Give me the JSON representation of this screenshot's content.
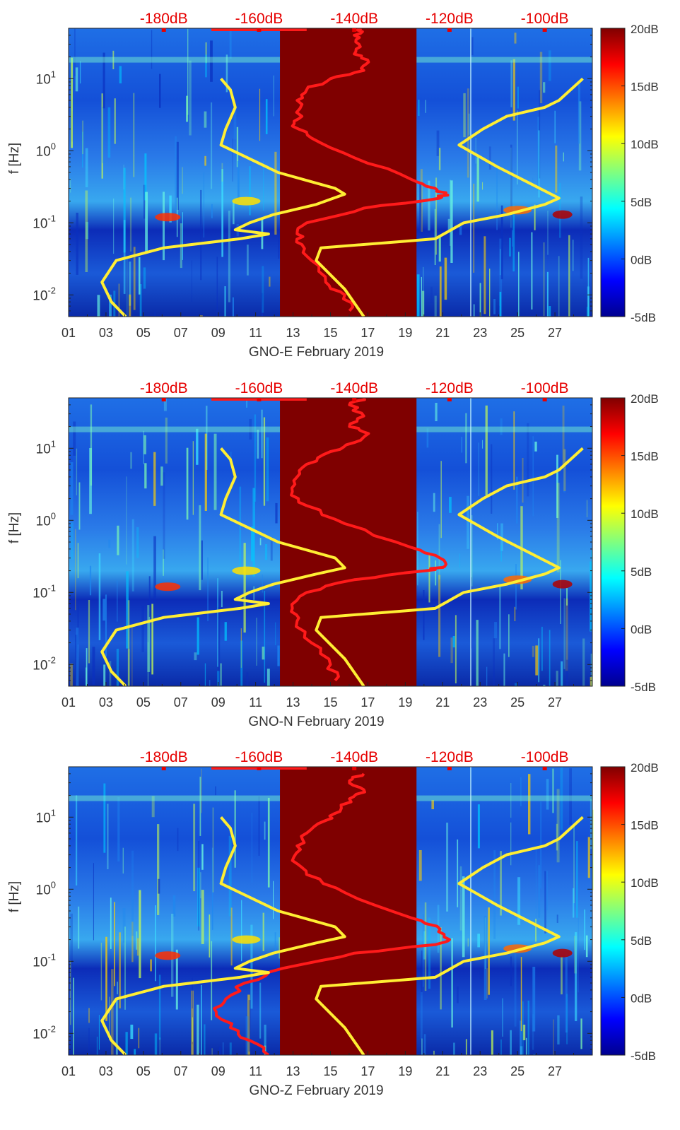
{
  "chart_data": [
    {
      "type": "heatmap",
      "station": "GNO-E",
      "xlabel": "GNO-E February 2019",
      "ylabel": "f [Hz]",
      "x_ticks": [
        "01",
        "03",
        "05",
        "07",
        "09",
        "11",
        "13",
        "15",
        "17",
        "19",
        "21",
        "23",
        "25",
        "27"
      ],
      "y_ticks": [
        "10^-2",
        "10^-1",
        "10^0",
        "10^1"
      ],
      "top_ticks": [
        "-180dB",
        "-160dB",
        "-140dB",
        "-120dB",
        "-100dB"
      ],
      "colorbar": {
        "ticks": [
          "-5dB",
          "0dB",
          "5dB",
          "10dB",
          "15dB",
          "20dB"
        ],
        "range_db": [
          -5,
          20
        ]
      },
      "x_range_day": [
        1,
        29
      ],
      "y_range_hz": [
        0.005,
        50
      ],
      "data_gap_days": [
        12.3,
        19.6
      ],
      "red_curve": {
        "name": "PSD (top axis, dB)",
        "points": [
          [
            -138.5,
            50
          ],
          [
            -140,
            40
          ],
          [
            -139,
            30
          ],
          [
            -140,
            22
          ],
          [
            -137,
            17
          ],
          [
            -138,
            13
          ],
          [
            -145,
            10
          ],
          [
            -150,
            7
          ],
          [
            -152,
            5
          ],
          [
            -151,
            3
          ],
          [
            -153,
            2.2
          ],
          [
            -149,
            1.5
          ],
          [
            -140,
            0.8
          ],
          [
            -128,
            0.4
          ],
          [
            -123,
            0.3
          ],
          [
            -121,
            0.25
          ],
          [
            -122,
            0.22
          ],
          [
            -138,
            0.16
          ],
          [
            -150,
            0.1
          ],
          [
            -152,
            0.07
          ],
          [
            -151,
            0.05
          ],
          [
            -149,
            0.03
          ],
          [
            -146,
            0.015
          ],
          [
            -142,
            0.01
          ],
          [
            -141,
            0.006
          ]
        ]
      },
      "yellow_curve": {
        "name": "Reference model (top axis, dB)",
        "points": [
          [
            -168,
            10
          ],
          [
            -166,
            7
          ],
          [
            -165,
            4
          ],
          [
            -167,
            2
          ],
          [
            -168,
            1.2
          ],
          [
            -156,
            0.5
          ],
          [
            -144,
            0.3
          ],
          [
            -142,
            0.25
          ],
          [
            -148,
            0.18
          ],
          [
            -157,
            0.13
          ],
          [
            -162,
            0.1
          ],
          [
            -165,
            0.08
          ],
          [
            -158,
            0.07
          ],
          [
            -164,
            0.06
          ],
          [
            -180,
            0.045
          ],
          [
            -190,
            0.03
          ],
          [
            -193,
            0.015
          ],
          [
            -191,
            0.008
          ],
          [
            -188,
            0.005
          ]
        ]
      },
      "yellow_curve_right": {
        "points": [
          [
            -138,
            0.005
          ],
          [
            -142,
            0.012
          ],
          [
            -148,
            0.03
          ],
          [
            -147,
            0.045
          ],
          [
            -130,
            0.055
          ],
          [
            -123,
            0.06
          ],
          [
            -117,
            0.1
          ],
          [
            -108,
            0.13
          ],
          [
            -100,
            0.18
          ],
          [
            -97,
            0.22
          ],
          [
            -103,
            0.35
          ],
          [
            -110,
            0.6
          ],
          [
            -118,
            1.2
          ],
          [
            -113,
            2
          ],
          [
            -108,
            3
          ],
          [
            -100,
            4
          ],
          [
            -97,
            5
          ],
          [
            -92,
            10
          ]
        ]
      }
    },
    {
      "type": "heatmap",
      "station": "GNO-N",
      "xlabel": "GNO-N February 2019",
      "ylabel": "f [Hz]",
      "x_ticks": [
        "01",
        "03",
        "05",
        "07",
        "09",
        "11",
        "13",
        "15",
        "17",
        "19",
        "21",
        "23",
        "25",
        "27"
      ],
      "y_ticks": [
        "10^-2",
        "10^-1",
        "10^0",
        "10^1"
      ],
      "top_ticks": [
        "-180dB",
        "-160dB",
        "-140dB",
        "-120dB",
        "-100dB"
      ],
      "colorbar": {
        "ticks": [
          "-5dB",
          "0dB",
          "5dB",
          "10dB",
          "15dB",
          "20dB"
        ],
        "range_db": [
          -5,
          20
        ]
      },
      "x_range_day": [
        1,
        29
      ],
      "y_range_hz": [
        0.005,
        50
      ],
      "data_gap_days": [
        12.3,
        19.6
      ],
      "red_curve": {
        "points": [
          [
            -138,
            50
          ],
          [
            -141,
            40
          ],
          [
            -138,
            28
          ],
          [
            -141,
            20
          ],
          [
            -137,
            16
          ],
          [
            -140,
            12
          ],
          [
            -145,
            9
          ],
          [
            -150,
            6
          ],
          [
            -152,
            4
          ],
          [
            -153,
            2.5
          ],
          [
            -150,
            1.6
          ],
          [
            -142,
            0.9
          ],
          [
            -128,
            0.42
          ],
          [
            -122,
            0.3
          ],
          [
            -121,
            0.23
          ],
          [
            -125,
            0.2
          ],
          [
            -140,
            0.15
          ],
          [
            -150,
            0.1
          ],
          [
            -153,
            0.06
          ],
          [
            -152,
            0.04
          ],
          [
            -149,
            0.02
          ],
          [
            -145,
            0.01
          ],
          [
            -144,
            0.006
          ]
        ]
      },
      "yellow_curve": {
        "points": [
          [
            -168,
            10
          ],
          [
            -166,
            7
          ],
          [
            -165,
            4
          ],
          [
            -167,
            2
          ],
          [
            -168,
            1.2
          ],
          [
            -156,
            0.5
          ],
          [
            -144,
            0.3
          ],
          [
            -142,
            0.22
          ],
          [
            -148,
            0.18
          ],
          [
            -157,
            0.13
          ],
          [
            -162,
            0.1
          ],
          [
            -165,
            0.08
          ],
          [
            -158,
            0.07
          ],
          [
            -164,
            0.06
          ],
          [
            -180,
            0.045
          ],
          [
            -190,
            0.03
          ],
          [
            -193,
            0.015
          ],
          [
            -191,
            0.008
          ],
          [
            -188,
            0.005
          ]
        ]
      },
      "yellow_curve_right": {
        "points": [
          [
            -138,
            0.005
          ],
          [
            -142,
            0.012
          ],
          [
            -148,
            0.03
          ],
          [
            -147,
            0.045
          ],
          [
            -130,
            0.055
          ],
          [
            -123,
            0.06
          ],
          [
            -117,
            0.1
          ],
          [
            -108,
            0.13
          ],
          [
            -100,
            0.18
          ],
          [
            -97,
            0.22
          ],
          [
            -103,
            0.35
          ],
          [
            -110,
            0.6
          ],
          [
            -118,
            1.2
          ],
          [
            -113,
            2
          ],
          [
            -108,
            3
          ],
          [
            -100,
            4
          ],
          [
            -97,
            5
          ],
          [
            -92,
            10
          ]
        ]
      }
    },
    {
      "type": "heatmap",
      "station": "GNO-Z",
      "xlabel": "GNO-Z February 2019",
      "ylabel": "f [Hz]",
      "x_ticks": [
        "01",
        "03",
        "05",
        "07",
        "09",
        "11",
        "13",
        "15",
        "17",
        "19",
        "21",
        "23",
        "25",
        "27"
      ],
      "y_ticks": [
        "10^-2",
        "10^-1",
        "10^0",
        "10^1"
      ],
      "top_ticks": [
        "-180dB",
        "-160dB",
        "-140dB",
        "-120dB",
        "-100dB"
      ],
      "colorbar": {
        "ticks": [
          "-5dB",
          "0dB",
          "5dB",
          "10dB",
          "15dB",
          "20dB"
        ],
        "range_db": [
          -5,
          20
        ]
      },
      "x_range_day": [
        1,
        29
      ],
      "y_range_hz": [
        0.005,
        50
      ],
      "data_gap_days": [
        12.3,
        19.6
      ],
      "red_curve": {
        "points": [
          [
            -138,
            40
          ],
          [
            -141,
            32
          ],
          [
            -138,
            24
          ],
          [
            -141,
            18
          ],
          [
            -143,
            12
          ],
          [
            -146,
            9
          ],
          [
            -150,
            6
          ],
          [
            -152,
            4
          ],
          [
            -153,
            2.5
          ],
          [
            -150,
            1.6
          ],
          [
            -142,
            0.9
          ],
          [
            -128,
            0.4
          ],
          [
            -122,
            0.28
          ],
          [
            -120,
            0.2
          ],
          [
            -123,
            0.17
          ],
          [
            -140,
            0.13
          ],
          [
            -155,
            0.08
          ],
          [
            -163,
            0.05
          ],
          [
            -167,
            0.03
          ],
          [
            -169,
            0.02
          ],
          [
            -166,
            0.012
          ],
          [
            -162,
            0.008
          ],
          [
            -158,
            0.005
          ]
        ]
      },
      "yellow_curve": {
        "points": [
          [
            -168,
            10
          ],
          [
            -166,
            7
          ],
          [
            -165,
            4
          ],
          [
            -167,
            2
          ],
          [
            -168,
            1.2
          ],
          [
            -156,
            0.5
          ],
          [
            -144,
            0.3
          ],
          [
            -142,
            0.22
          ],
          [
            -148,
            0.18
          ],
          [
            -157,
            0.13
          ],
          [
            -162,
            0.1
          ],
          [
            -165,
            0.08
          ],
          [
            -158,
            0.07
          ],
          [
            -164,
            0.06
          ],
          [
            -180,
            0.045
          ],
          [
            -190,
            0.03
          ],
          [
            -193,
            0.015
          ],
          [
            -191,
            0.008
          ],
          [
            -188,
            0.005
          ]
        ]
      },
      "yellow_curve_right": {
        "points": [
          [
            -138,
            0.005
          ],
          [
            -142,
            0.012
          ],
          [
            -148,
            0.03
          ],
          [
            -147,
            0.045
          ],
          [
            -130,
            0.055
          ],
          [
            -123,
            0.06
          ],
          [
            -117,
            0.1
          ],
          [
            -108,
            0.13
          ],
          [
            -100,
            0.18
          ],
          [
            -97,
            0.22
          ],
          [
            -103,
            0.35
          ],
          [
            -110,
            0.6
          ],
          [
            -118,
            1.2
          ],
          [
            -113,
            2
          ],
          [
            -108,
            3
          ],
          [
            -100,
            4
          ],
          [
            -97,
            5
          ],
          [
            -92,
            10
          ]
        ]
      }
    }
  ],
  "colors": {
    "gap_fill": "#7f0000",
    "red_curve": "#ff1a1a",
    "yellow_curve": "#ffee33",
    "top_tick_text": "#e60000",
    "axis": "#222222",
    "label_text": "#333333"
  }
}
